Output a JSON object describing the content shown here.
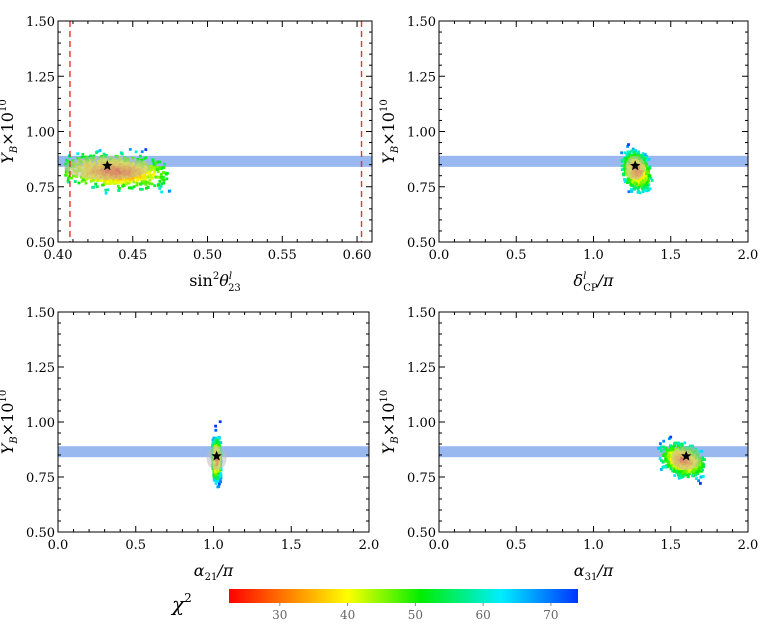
{
  "chart_data": [
    {
      "type": "scatter",
      "panel": "top-left",
      "xlabel_parts": [
        "sin",
        "2",
        "θ",
        "l",
        "23"
      ],
      "ylabel_parts": [
        "Y",
        "B",
        "×10",
        "10"
      ],
      "xlim": [
        0.4,
        0.61
      ],
      "ylim": [
        0.5,
        1.5
      ],
      "xticks": [
        "0.40",
        "0.45",
        "0.50",
        "0.55",
        "0.60"
      ],
      "xtick_values": [
        0.4,
        0.45,
        0.5,
        0.55,
        0.6
      ],
      "yticks": [
        "0.50",
        "0.75",
        "1.00",
        "1.25",
        "1.50"
      ],
      "ytick_values": [
        0.5,
        0.75,
        1.0,
        1.25,
        1.5
      ],
      "band": [
        0.84,
        0.89
      ],
      "vlines": [
        0.408,
        0.603
      ],
      "best_fit": [
        0.433,
        0.845
      ],
      "cloud": {
        "center": [
          0.438,
          0.818
        ],
        "spread": [
          0.018,
          0.035
        ],
        "tilt": -0.35,
        "extent": [
          0.405,
          0.475
        ]
      }
    },
    {
      "type": "scatter",
      "panel": "top-right",
      "xlabel_parts": [
        "δ",
        "l",
        "CP",
        "/π"
      ],
      "ylabel_parts": [
        "Y",
        "B",
        "×10",
        "10"
      ],
      "xlim": [
        0.0,
        2.0
      ],
      "ylim": [
        0.5,
        1.5
      ],
      "xticks": [
        "0.0",
        "0.5",
        "1.0",
        "1.5",
        "2.0"
      ],
      "xtick_values": [
        0.0,
        0.5,
        1.0,
        1.5,
        2.0
      ],
      "yticks": [
        "0.50",
        "0.75",
        "1.00",
        "1.25",
        "1.50"
      ],
      "ytick_values": [
        0.5,
        0.75,
        1.0,
        1.25,
        1.5
      ],
      "band": [
        0.84,
        0.89
      ],
      "vlines": [],
      "best_fit": [
        1.27,
        0.845
      ],
      "cloud": {
        "center": [
          1.28,
          0.82
        ],
        "spread": [
          0.04,
          0.035
        ],
        "tilt": -0.2,
        "extent": [
          1.18,
          1.38
        ]
      }
    },
    {
      "type": "scatter",
      "panel": "bottom-left",
      "xlabel_parts": [
        "α",
        "21",
        "/π"
      ],
      "ylabel_parts": [
        "Y",
        "B",
        "×10",
        "10"
      ],
      "xlim": [
        0.0,
        2.0
      ],
      "ylim": [
        0.5,
        1.5
      ],
      "xticks": [
        "0.0",
        "0.5",
        "1.0",
        "1.5",
        "2.0"
      ],
      "xtick_values": [
        0.0,
        0.5,
        1.0,
        1.5,
        2.0
      ],
      "yticks": [
        "0.50",
        "0.75",
        "1.00",
        "1.25",
        "1.50"
      ],
      "ytick_values": [
        0.5,
        0.75,
        1.0,
        1.25,
        1.5
      ],
      "band": [
        0.84,
        0.89
      ],
      "vlines": [],
      "best_fit": [
        1.02,
        0.845
      ],
      "cloud": {
        "center": [
          1.02,
          0.83
        ],
        "spread": [
          0.012,
          0.04
        ],
        "tilt": 0.0,
        "extent": [
          0.99,
          1.05
        ]
      }
    },
    {
      "type": "scatter",
      "panel": "bottom-right",
      "xlabel_parts": [
        "α",
        "31",
        "/π"
      ],
      "ylabel_parts": [
        "Y",
        "B",
        "×10",
        "10"
      ],
      "xlim": [
        0.0,
        2.0
      ],
      "ylim": [
        0.5,
        1.5
      ],
      "xticks": [
        "0.0",
        "0.5",
        "1.0",
        "1.5",
        "2.0"
      ],
      "xtick_values": [
        0.0,
        0.5,
        1.0,
        1.5,
        2.0
      ],
      "yticks": [
        "0.50",
        "0.75",
        "1.00",
        "1.25",
        "1.50"
      ],
      "ytick_values": [
        0.5,
        0.75,
        1.0,
        1.25,
        1.5
      ],
      "band": [
        0.84,
        0.89
      ],
      "vlines": [],
      "best_fit": [
        1.6,
        0.845
      ],
      "cloud": {
        "center": [
          1.58,
          0.825
        ],
        "spread": [
          0.06,
          0.03
        ],
        "tilt": -0.15,
        "extent": [
          1.42,
          1.72
        ]
      }
    }
  ],
  "colorbar": {
    "label_parts": [
      "χ",
      "2"
    ],
    "ticks": [
      "30",
      "40",
      "50",
      "60",
      "70"
    ],
    "tick_values": [
      30,
      40,
      50,
      60,
      70
    ],
    "range": [
      22.5,
      74
    ]
  },
  "colors": {
    "band": "#9ab8f0",
    "vline": "#e8322a",
    "best_fit": "#000000",
    "gradient": [
      "#ff0000",
      "#ff8800",
      "#ffff00",
      "#00ee00",
      "#00eeff",
      "#0033ff"
    ]
  }
}
